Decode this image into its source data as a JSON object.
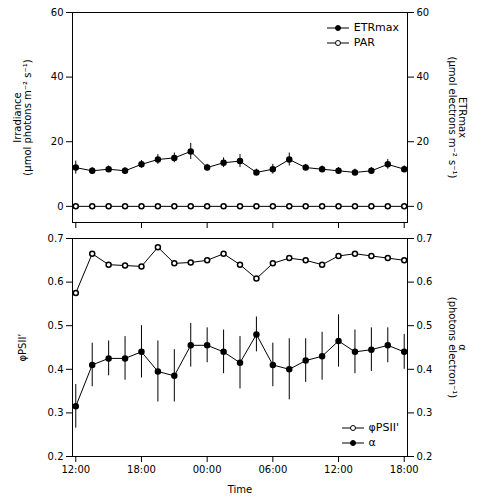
{
  "chart_data": [
    {
      "type": "line",
      "xlim": [
        -0.3,
        30.3
      ],
      "xticks": [
        0,
        6,
        12,
        18,
        24,
        30
      ],
      "ylim": [
        -5,
        60
      ],
      "yticks": [
        0,
        20,
        40,
        60
      ],
      "y2lim": [
        -5,
        60
      ],
      "y2ticks": [
        0,
        20,
        40,
        60
      ],
      "ylabel": "Irradiance\n(μmol photons m⁻² s⁻¹)",
      "y2label": "ETRmax\n(μmol electrons m⁻² s⁻¹)",
      "tick_labels": "y",
      "legend": "upper right",
      "x": [
        0,
        1.5,
        3,
        4.5,
        6,
        7.5,
        9,
        10.5,
        12,
        13.5,
        15,
        16.5,
        18,
        19.5,
        21,
        22.5,
        24,
        25.5,
        27,
        28.5,
        30
      ],
      "series": [
        {
          "name": "ETRmax",
          "color": "black",
          "marker": "filled circle",
          "values": [
            12.0,
            11.0,
            11.5,
            11.0,
            13.0,
            14.5,
            15.0,
            17.0,
            12.0,
            13.5,
            14.0,
            10.5,
            11.5,
            14.5,
            12.0,
            11.5,
            11.0,
            10.5,
            11.0,
            13.0,
            11.5
          ],
          "errors": [
            2.0,
            1.0,
            1.0,
            1.0,
            1.2,
            1.5,
            1.5,
            2.5,
            1.0,
            1.5,
            2.0,
            1.0,
            1.5,
            2.0,
            1.0,
            1.0,
            1.0,
            1.0,
            1.0,
            1.5,
            1.0
          ]
        },
        {
          "name": "PAR",
          "color": "black",
          "marker": "open circle",
          "values": [
            0,
            0,
            0,
            0,
            0,
            0,
            0,
            0,
            0,
            0,
            0,
            0,
            0,
            0,
            0,
            0,
            0,
            0,
            0,
            0,
            0
          ]
        }
      ]
    },
    {
      "type": "line",
      "xlabel": "Time",
      "xlim": [
        -0.3,
        30.3
      ],
      "xticks": [
        {
          "value": 0,
          "label": "12:00"
        },
        {
          "value": 6,
          "label": "18:00"
        },
        {
          "value": 12,
          "label": "00:00"
        },
        {
          "value": 18,
          "label": "06:00"
        },
        {
          "value": 24,
          "label": "12:00"
        },
        {
          "value": 30,
          "label": "18:00"
        }
      ],
      "ylim": [
        0.2,
        0.7
      ],
      "yticks": [
        0.2,
        0.3,
        0.4,
        0.5,
        0.6,
        0.7
      ],
      "y2lim": [
        0.2,
        0.7
      ],
      "y2ticks": [
        0.2,
        0.3,
        0.4,
        0.5,
        0.6,
        0.7
      ],
      "ylabel": "φPSII’",
      "y2label": "α\n(photons electron⁻¹)",
      "legend": "lower right",
      "x": [
        0,
        1.5,
        3,
        4.5,
        6,
        7.5,
        9,
        10.5,
        12,
        13.5,
        15,
        16.5,
        18,
        19.5,
        21,
        22.5,
        24,
        25.5,
        27,
        28.5,
        30
      ],
      "series": [
        {
          "name": "φPSII'",
          "color": "black",
          "marker": "open circle",
          "values": [
            0.575,
            0.665,
            0.64,
            0.638,
            0.636,
            0.68,
            0.643,
            0.645,
            0.65,
            0.665,
            0.64,
            0.608,
            0.643,
            0.655,
            0.65,
            0.64,
            0.66,
            0.665,
            0.66,
            0.655,
            0.65
          ]
        },
        {
          "name": "α",
          "color": "black",
          "marker": "filled circle",
          "values": [
            0.315,
            0.41,
            0.425,
            0.425,
            0.44,
            0.395,
            0.385,
            0.455,
            0.455,
            0.44,
            0.415,
            0.48,
            0.41,
            0.4,
            0.42,
            0.43,
            0.465,
            0.44,
            0.445,
            0.455,
            0.44
          ],
          "errors": [
            0.05,
            0.05,
            0.04,
            0.05,
            0.06,
            0.07,
            0.06,
            0.05,
            0.04,
            0.05,
            0.06,
            0.04,
            0.05,
            0.07,
            0.05,
            0.055,
            0.06,
            0.05,
            0.05,
            0.04,
            0.04
          ]
        }
      ]
    }
  ]
}
